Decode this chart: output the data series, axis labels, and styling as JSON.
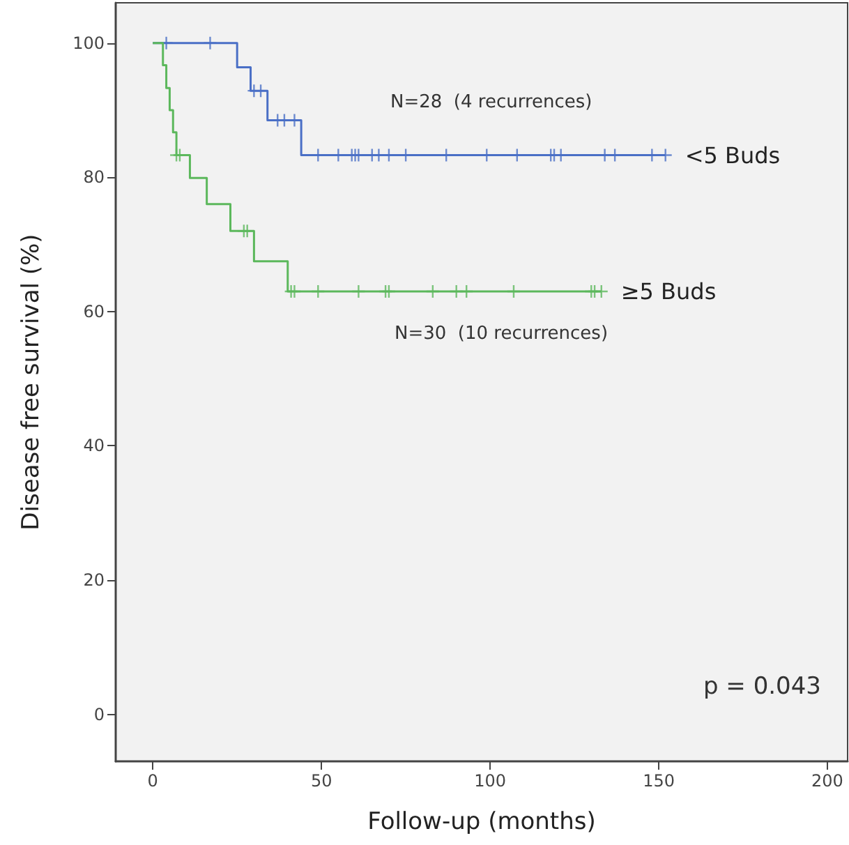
{
  "chart_data": {
    "type": "step",
    "xlabel": "Follow-up (months)",
    "ylabel": "Disease free survival (%)",
    "xlim": [
      -11,
      206
    ],
    "xticks": [
      0,
      50,
      100,
      150,
      200
    ],
    "ylim": [
      -7,
      106
    ],
    "yticks": [
      0,
      20,
      40,
      60,
      80,
      100
    ],
    "grid": false,
    "legend": false,
    "series": [
      {
        "name": "<5 Buds",
        "color": "#4a6fc6",
        "x": [
          0,
          25,
          29,
          34,
          44,
          152
        ],
        "values": [
          100,
          96.4,
          92.9,
          88.5,
          83.3,
          83.3
        ]
      },
      {
        "type": "scatter",
        "marker": "cross",
        "color": "#4a6fc6",
        "x": [
          4,
          17,
          30,
          32,
          37,
          39,
          42,
          49,
          55,
          59,
          60,
          61,
          65,
          67,
          70,
          75,
          87,
          99,
          108,
          118,
          119,
          121,
          134,
          137,
          148,
          152
        ],
        "values": [
          100,
          100,
          92.9,
          92.9,
          88.5,
          88.5,
          88.5,
          83.3,
          83.3,
          83.3,
          83.3,
          83.3,
          83.3,
          83.3,
          83.3,
          83.3,
          83.3,
          83.3,
          83.3,
          83.3,
          83.3,
          83.3,
          83.3,
          83.3,
          83.3,
          83.3
        ]
      },
      {
        "name": "≥5 Buds",
        "color": "#5cb85c",
        "x": [
          0,
          3,
          4,
          5,
          6,
          7,
          11,
          16,
          23,
          30,
          40,
          133
        ],
        "values": [
          100,
          96.7,
          93.3,
          90,
          86.7,
          83.3,
          79.9,
          76,
          72,
          67.5,
          63,
          63
        ]
      },
      {
        "type": "scatter",
        "marker": "cross",
        "color": "#5cb85c",
        "x": [
          7,
          8,
          27,
          28,
          41,
          42,
          49,
          61,
          69,
          70,
          83,
          90,
          93,
          107,
          130,
          131,
          133
        ],
        "values": [
          83.3,
          83.3,
          72,
          72,
          63,
          63,
          63,
          63,
          63,
          63,
          63,
          63,
          63,
          63,
          63,
          63,
          63
        ]
      }
    ],
    "annotations": [
      "N=28  (4 recurrences)",
      "N=30  (10 recurrences)",
      "p = 0.043"
    ]
  }
}
